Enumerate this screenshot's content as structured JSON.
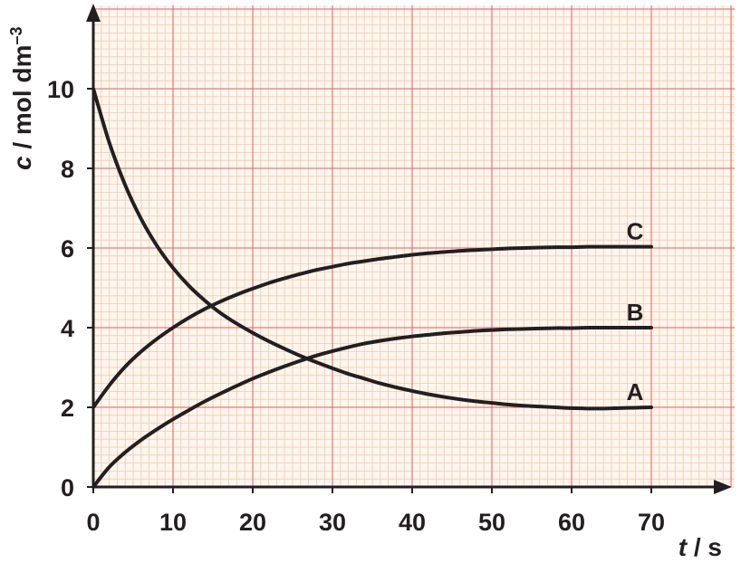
{
  "chart_data": {
    "type": "line",
    "x": [
      0,
      2,
      4,
      6,
      8,
      10,
      12,
      14,
      16,
      18,
      20,
      22,
      24,
      26,
      28,
      30,
      32,
      34,
      36,
      38,
      40,
      42,
      44,
      46,
      48,
      50,
      52,
      54,
      56,
      58,
      60,
      62,
      64,
      66,
      68,
      70
    ],
    "series": [
      {
        "name": "A",
        "values": [
          10,
          8.65,
          7.58,
          6.73,
          6.05,
          5.5,
          5.05,
          4.68,
          4.36,
          4.1,
          3.87,
          3.66,
          3.47,
          3.29,
          3.13,
          2.98,
          2.84,
          2.72,
          2.6,
          2.5,
          2.41,
          2.33,
          2.26,
          2.2,
          2.15,
          2.11,
          2.07,
          2.04,
          2.02,
          2.0,
          1.98,
          1.97,
          1.97,
          1.98,
          1.99,
          2.0
        ]
      },
      {
        "name": "B",
        "values": [
          0,
          0.5,
          0.87,
          1.18,
          1.45,
          1.7,
          1.93,
          2.15,
          2.35,
          2.54,
          2.72,
          2.88,
          3.03,
          3.17,
          3.3,
          3.41,
          3.51,
          3.6,
          3.67,
          3.73,
          3.78,
          3.82,
          3.86,
          3.89,
          3.92,
          3.94,
          3.96,
          3.97,
          3.98,
          3.99,
          3.99,
          4.0,
          4.0,
          4.0,
          4.0,
          4.0
        ]
      },
      {
        "name": "C",
        "values": [
          2,
          2.55,
          3.02,
          3.4,
          3.72,
          4.0,
          4.25,
          4.47,
          4.66,
          4.83,
          4.98,
          5.12,
          5.24,
          5.35,
          5.45,
          5.53,
          5.61,
          5.67,
          5.73,
          5.78,
          5.83,
          5.87,
          5.9,
          5.93,
          5.95,
          5.97,
          5.99,
          6.0,
          6.01,
          6.02,
          6.02,
          6.03,
          6.03,
          6.03,
          6.03,
          6.03
        ]
      }
    ],
    "x_ticks": [
      "0",
      "10",
      "20",
      "30",
      "40",
      "50",
      "60",
      "70"
    ],
    "y_ticks": [
      "0",
      "2",
      "4",
      "6",
      "8",
      "10"
    ],
    "xlim": [
      0,
      80
    ],
    "ylim": [
      0,
      12
    ],
    "xlabel": {
      "var": "t",
      "rest": " / s"
    },
    "ylabel": {
      "var": "c",
      "rest": " / mol dm",
      "sup": "–3"
    },
    "grid": true,
    "colors": {
      "fine_grid": "#f6c9a8",
      "major_grid": "#ee5a5a",
      "curve": "#231f20",
      "axis": "#231f20",
      "background": "#fbf6ef"
    }
  }
}
